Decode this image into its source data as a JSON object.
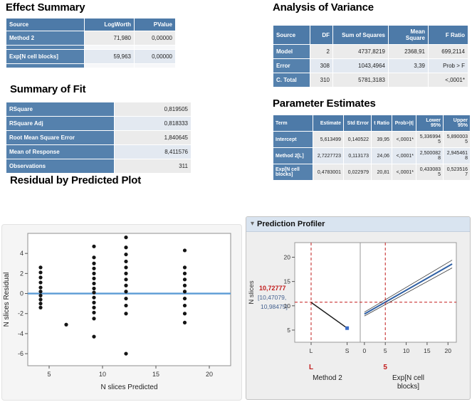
{
  "colors": {
    "header_blue": "#4d7aa8",
    "label_blue": "#5581ad",
    "cell_gray": "#ebebeb",
    "ref_line_blue": "#5b9bd5",
    "profiler_line_blue": "#2e5fa3",
    "profiler_red": "#c21d1d",
    "point_black": "#151515"
  },
  "effect_summary": {
    "title": "Effect Summary",
    "columns": [
      "Source",
      "LogWorth",
      "PValue"
    ],
    "rows": [
      [
        "Method 2",
        "71,980",
        "0,00000"
      ],
      [
        "Exp[N cell blocks]",
        "59,963",
        "0,00000"
      ]
    ]
  },
  "summary_of_fit": {
    "title": "Summary of Fit",
    "rows": [
      [
        "RSquare",
        "0,819505"
      ],
      [
        "RSquare Adj",
        "0,818333"
      ],
      [
        "Root Mean Square Error",
        "1,840645"
      ],
      [
        "Mean of Response",
        "8,411576"
      ],
      [
        "Observations",
        "311"
      ]
    ]
  },
  "anova": {
    "title": "Analysis of Variance",
    "columns": [
      "Source",
      "DF",
      "Sum of Squares",
      "Mean Square",
      "F Ratio"
    ],
    "rows": [
      [
        "Model",
        "2",
        "4737,8219",
        "2368,91",
        "699,2114"
      ],
      [
        "Error",
        "308",
        "1043,4964",
        "3,39",
        "Prob > F"
      ],
      [
        "C. Total",
        "310",
        "5781,3183",
        "",
        "<,0001*"
      ]
    ]
  },
  "parameter_estimates": {
    "title": "Parameter Estimates",
    "columns": [
      "Term",
      "Estimate",
      "Std Error",
      "t Ratio",
      "Prob>|t|",
      "Lower 95%",
      "Upper 95%"
    ],
    "rows": [
      [
        "Intercept",
        "5,613499",
        "0,140522",
        "39,95",
        "<,0001*",
        "5,3369945",
        "5,8900035"
      ],
      [
        "Method 2[L]",
        "2,7227723",
        "0,113173",
        "24,06",
        "<,0001*",
        "2,5000828",
        "2,9454618"
      ],
      [
        "Exp[N cell blocks]",
        "0,4783001",
        "0,022979",
        "20,81",
        "<,0001*",
        "0,4330835",
        "0,5235167"
      ]
    ]
  },
  "chart_data": [
    {
      "id": "residual_plot",
      "type": "scatter",
      "title": "Residual by Predicted Plot",
      "xlabel": "N slices Predicted",
      "ylabel": "N slices Residual",
      "xlim": [
        3,
        22
      ],
      "ylim": [
        -7.2,
        6
      ],
      "xticks": [
        5,
        10,
        15,
        20
      ],
      "yticks": [
        -6,
        -4,
        -2,
        0,
        2,
        4
      ],
      "ref_line_y": 0,
      "points": [
        [
          4.2,
          2.6
        ],
        [
          4.2,
          2.1
        ],
        [
          4.2,
          1.6
        ],
        [
          4.2,
          1.1
        ],
        [
          4.2,
          0.6
        ],
        [
          4.2,
          0.2
        ],
        [
          4.2,
          -0.2
        ],
        [
          4.2,
          -0.6
        ],
        [
          4.2,
          -1.0
        ],
        [
          4.2,
          -1.4
        ],
        [
          6.6,
          -3.1
        ],
        [
          9.2,
          4.7
        ],
        [
          9.2,
          3.6
        ],
        [
          9.2,
          3.0
        ],
        [
          9.2,
          2.5
        ],
        [
          9.2,
          2.0
        ],
        [
          9.2,
          1.5
        ],
        [
          9.2,
          1.0
        ],
        [
          9.2,
          0.5
        ],
        [
          9.2,
          0.1
        ],
        [
          9.2,
          -0.4
        ],
        [
          9.2,
          -0.9
        ],
        [
          9.2,
          -1.4
        ],
        [
          9.2,
          -1.9
        ],
        [
          9.2,
          -2.5
        ],
        [
          9.2,
          -4.3
        ],
        [
          12.2,
          5.6
        ],
        [
          12.2,
          4.6
        ],
        [
          12.2,
          3.9
        ],
        [
          12.2,
          3.2
        ],
        [
          12.2,
          2.6
        ],
        [
          12.2,
          2.0
        ],
        [
          12.2,
          1.4
        ],
        [
          12.2,
          0.8
        ],
        [
          12.2,
          0.2
        ],
        [
          12.2,
          -0.5
        ],
        [
          12.2,
          -1.2
        ],
        [
          12.2,
          -2.0
        ],
        [
          12.2,
          -6.0
        ],
        [
          17.7,
          4.3
        ],
        [
          17.7,
          2.6
        ],
        [
          17.7,
          2.0
        ],
        [
          17.7,
          1.4
        ],
        [
          17.7,
          0.8
        ],
        [
          17.7,
          0.2
        ],
        [
          17.7,
          -0.5
        ],
        [
          17.7,
          -1.2
        ],
        [
          17.7,
          -2.0
        ],
        [
          17.7,
          -2.9
        ]
      ]
    },
    {
      "id": "prediction_profiler",
      "type": "profiler",
      "title": "Prediction Profiler",
      "response_label": "N slices",
      "predicted_value": "10,72777",
      "ci_lines": [
        "[10,47079,",
        "10,98475]"
      ],
      "ylim": [
        2.5,
        23
      ],
      "yticks": [
        5,
        10,
        15,
        20
      ],
      "current_y": 10.72777,
      "panels": [
        {
          "scale": "categorical",
          "factor_lines": [
            "Method 2"
          ],
          "current_label": "L",
          "ticks": [
            "L",
            "S"
          ],
          "tick_pos": [
            0.25,
            0.8
          ],
          "line": [
            [
              0.25,
              10.7
            ],
            [
              0.8,
              5.4
            ]
          ],
          "marker": [
            0.8,
            5.4
          ],
          "current_x": 0.25
        },
        {
          "scale": "numeric",
          "factor_lines": [
            "Exp[N cell",
            "blocks]"
          ],
          "current_label": "5",
          "xlim": [
            -1,
            22
          ],
          "ticks": [
            0,
            5,
            10,
            15,
            20
          ],
          "line": [
            [
              0,
              8.3
            ],
            [
              21,
              18.6
            ]
          ],
          "ci_lower": [
            [
              0,
              7.9
            ],
            [
              21,
              17.8
            ]
          ],
          "ci_upper": [
            [
              0,
              8.7
            ],
            [
              21,
              19.4
            ]
          ],
          "current_x": 5
        }
      ]
    }
  ]
}
